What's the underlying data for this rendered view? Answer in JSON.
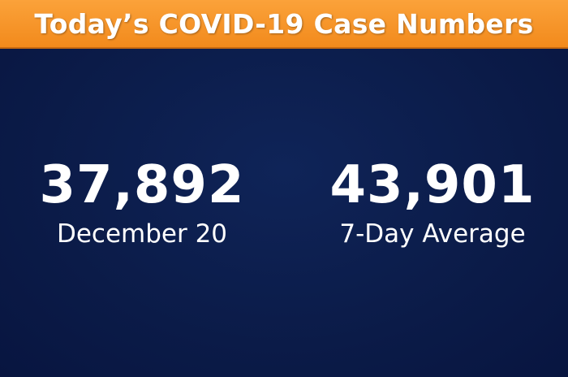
{
  "header": {
    "title": "Today’s COVID-19 Case Numbers"
  },
  "stats": [
    {
      "value": "37,892",
      "label": "December 20"
    },
    {
      "value": "43,901",
      "label": "7-Day Average"
    }
  ]
}
